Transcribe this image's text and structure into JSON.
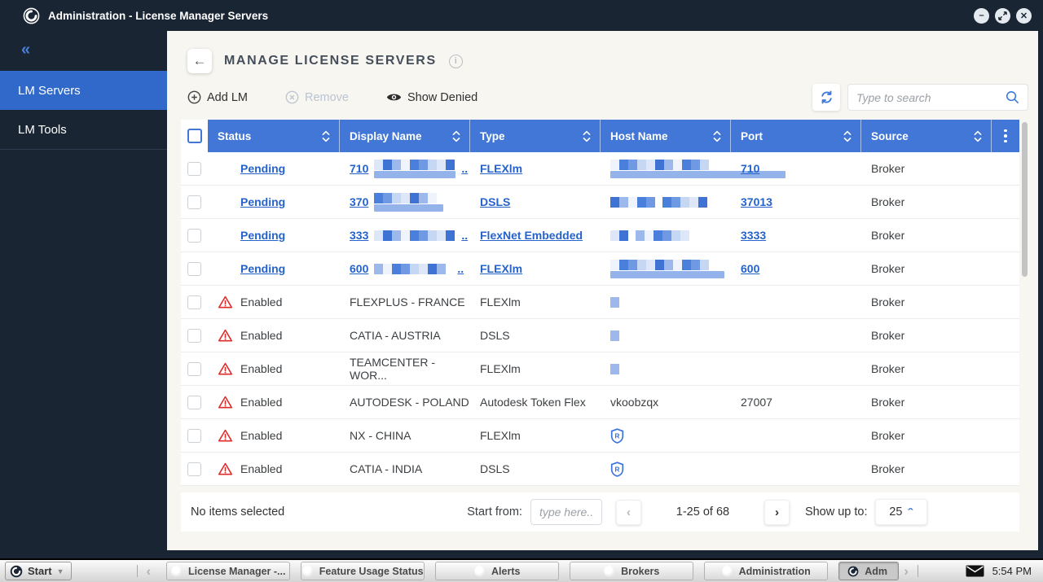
{
  "window": {
    "title": "Administration - License Manager Servers"
  },
  "colors": {
    "accent_blue": "#4277d8",
    "link_blue": "#2563cb",
    "warning_red": "#e02b2b",
    "sidebar_active": "#3069c9"
  },
  "sidebar": {
    "items": [
      {
        "label": "LM Servers",
        "active": true
      },
      {
        "label": "LM Tools",
        "active": false
      }
    ]
  },
  "header": {
    "title": "MANAGE LICENSE SERVERS"
  },
  "toolbar": {
    "add_label": "Add LM",
    "remove_label": "Remove",
    "show_denied_label": "Show Denied",
    "search_placeholder": "Type to search"
  },
  "table": {
    "columns": [
      "Status",
      "Display Name",
      "Type",
      "Host Name",
      "Port",
      "Source"
    ],
    "rows": [
      {
        "status": "Pending",
        "link": true,
        "warning": false,
        "display": {
          "text": "710",
          "mosaic": [
            100
          ],
          "bar": 100,
          "ellipsis": ".."
        },
        "type": {
          "text": "FLEXlm",
          "link": true
        },
        "host": {
          "mosaic": [
            130
          ],
          "bar": 215
        },
        "port": {
          "text": "710",
          "link": true
        },
        "source": "Broker"
      },
      {
        "status": "Pending",
        "link": true,
        "warning": false,
        "display": {
          "text": "370",
          "mosaic": [
            85
          ],
          "bar": 85
        },
        "type": {
          "text": "DSLS",
          "link": true
        },
        "host": {
          "mosaic": [
            55,
            58
          ]
        },
        "port": {
          "text": "37013",
          "link": true
        },
        "source": "Broker"
      },
      {
        "status": "Pending",
        "link": true,
        "warning": false,
        "display": {
          "text": "333",
          "mosaic": [
            100
          ],
          "ellipsis": ".."
        },
        "type": {
          "text": "FlexNet Embedded",
          "link": true
        },
        "host": {
          "mosaic": [
            22,
            70
          ]
        },
        "port": {
          "text": "3333",
          "link": true
        },
        "source": "Broker"
      },
      {
        "status": "Pending",
        "link": true,
        "warning": false,
        "display": {
          "text": "600",
          "mosaic": [
            95
          ],
          "ellipsis": ".."
        },
        "type": {
          "text": "FLEXlm",
          "link": true
        },
        "host": {
          "mosaic": [
            130
          ],
          "bar": 140
        },
        "port": {
          "text": "600",
          "link": true
        },
        "source": "Broker"
      },
      {
        "status": "Enabled",
        "link": false,
        "warning": true,
        "display": {
          "text": "FLEXPLUS - FRANCE"
        },
        "type": {
          "text": "FLEXlm"
        },
        "host": {
          "mosaic": [
            18
          ]
        },
        "port": {
          "text": ""
        },
        "source": "Broker"
      },
      {
        "status": "Enabled",
        "link": false,
        "warning": true,
        "display": {
          "text": "CATIA - AUSTRIA"
        },
        "type": {
          "text": "DSLS"
        },
        "host": {
          "mosaic": [
            18
          ]
        },
        "port": {
          "text": ""
        },
        "source": "Broker"
      },
      {
        "status": "Enabled",
        "link": false,
        "warning": true,
        "display": {
          "text": "TEAMCENTER - WOR..."
        },
        "type": {
          "text": "FLEXlm"
        },
        "host": {
          "mosaic": [
            18
          ]
        },
        "port": {
          "text": ""
        },
        "source": "Broker"
      },
      {
        "status": "Enabled",
        "link": false,
        "warning": true,
        "display": {
          "text": "AUTODESK - POLAND"
        },
        "type": {
          "text": "Autodesk Token Flex"
        },
        "host": {
          "text": "vkoobzqx"
        },
        "port": {
          "text": "27007"
        },
        "source": "Broker"
      },
      {
        "status": "Enabled",
        "link": false,
        "warning": true,
        "display": {
          "text": "NX - CHINA"
        },
        "type": {
          "text": "FLEXlm"
        },
        "host": {
          "shield": true
        },
        "port": {
          "text": ""
        },
        "source": "Broker"
      },
      {
        "status": "Enabled",
        "link": false,
        "warning": true,
        "display": {
          "text": "CATIA - INDIA"
        },
        "type": {
          "text": "DSLS"
        },
        "host": {
          "shield": true
        },
        "port": {
          "text": ""
        },
        "source": "Broker"
      }
    ]
  },
  "footer": {
    "selection_status": "No items selected",
    "start_from_label": "Start from:",
    "start_from_placeholder": "type here..",
    "range": "1-25 of 68",
    "show_up_to_label": "Show up to:",
    "page_size": "25"
  },
  "taskbar": {
    "start_label": "Start",
    "buttons": [
      {
        "label": "License Manager -..."
      },
      {
        "label": "Feature Usage Status"
      },
      {
        "label": "Alerts"
      },
      {
        "label": "Brokers"
      },
      {
        "label": "Administration"
      },
      {
        "label": "Adm",
        "active": true
      }
    ],
    "time": "5:54 PM"
  }
}
